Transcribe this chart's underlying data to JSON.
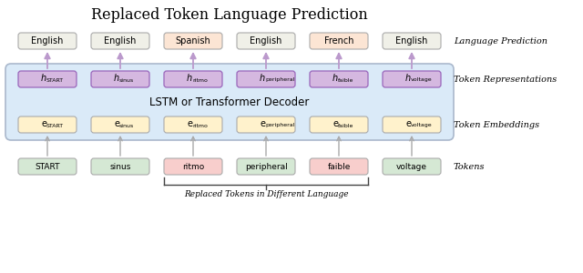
{
  "title": "Replaced Token Language Prediction",
  "tokens": [
    "START",
    "sinus",
    "ritmo",
    "peripheral",
    "faible",
    "voltage"
  ],
  "token_labels_main": [
    "e",
    "e",
    "e",
    "e",
    "e",
    "e"
  ],
  "token_labels_sub": [
    "START",
    "sinus",
    "ritmo",
    "peripheral",
    "faible",
    "voltage"
  ],
  "h_labels_main": [
    "h",
    "h",
    "h",
    "h",
    "h",
    "h"
  ],
  "h_labels_sub": [
    "START",
    "sinus",
    "ritmo",
    "peripheral",
    "faible",
    "voltage"
  ],
  "lang_labels": [
    "English",
    "English",
    "Spanish",
    "English",
    "French",
    "English"
  ],
  "token_colors": [
    "#d5e8d4",
    "#d5e8d4",
    "#f8cecc",
    "#d5e8d4",
    "#f8cecc",
    "#d5e8d4"
  ],
  "embed_color": "#fff2cc",
  "h_color": "#d5b8e0",
  "lang_color_normal": "#f0f0e8",
  "lang_color_replaced": "#fce5d4",
  "replaced_indices": [
    2,
    4
  ],
  "decoder_box_color": "#daeaf8",
  "decoder_edge_color": "#aab8cc",
  "right_labels": [
    "Language Prediction",
    "Token Representations",
    "Token Embeddings",
    "Tokens"
  ],
  "bottom_label": "Replaced Tokens in Different Language",
  "lstm_label": "LSTM or Transformer Decoder",
  "arrow_color_up": "#bb99cc",
  "arrow_color_embed": "#aaaaaa"
}
